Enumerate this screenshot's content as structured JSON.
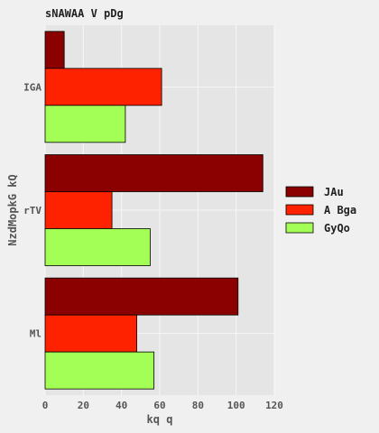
{
  "chart_data": {
    "type": "bar",
    "orientation": "horizontal",
    "title": "sNAWAA  V  pDg",
    "xlabel": "kq  q",
    "ylabel": "NzdMopkG  kQ",
    "categories": [
      "IGA",
      "rTV",
      "Ml"
    ],
    "series": [
      {
        "name": "JAu",
        "color": "#8b0000",
        "values": [
          10,
          114,
          101
        ]
      },
      {
        "name": "A Bga",
        "color": "#ff2200",
        "values": [
          61,
          35,
          48
        ]
      },
      {
        "name": "GyQo",
        "color": "#a3ff55",
        "values": [
          42,
          55,
          57
        ]
      }
    ],
    "xlim": [
      0,
      120
    ],
    "xticks": [
      "0",
      "20",
      "40",
      "60",
      "80",
      "100",
      "120"
    ],
    "grid": true,
    "legend_position": "right"
  }
}
